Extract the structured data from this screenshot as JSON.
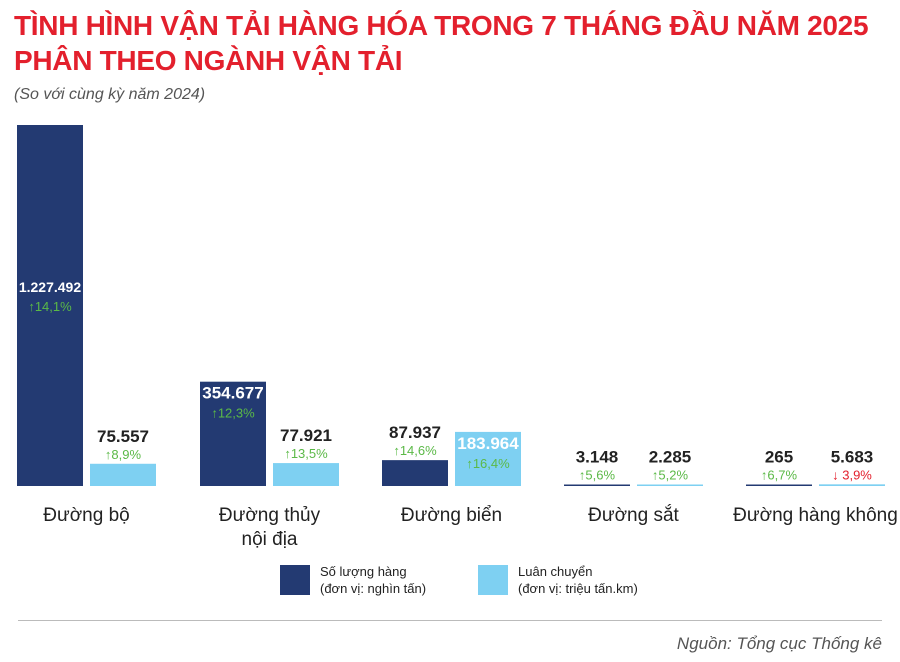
{
  "title": "TÌNH HÌNH VẬN TẢI HÀNG HÓA TRONG 7 THÁNG ĐẦU NĂM 2025 PHÂN THEO NGÀNH VẬN TẢI",
  "subtitle": "(So với cùng kỳ năm 2024)",
  "source": "Nguồn: Tổng cục Thống kê",
  "colors": {
    "volume": "#233a72",
    "rotation": "#7ed0f2",
    "up": "#5bb947",
    "down": "#e3202d",
    "title": "#e3202d"
  },
  "legend": [
    {
      "series": "volume",
      "line1": "Số lượng hàng",
      "line2": "(đơn vị: nghìn tấn)"
    },
    {
      "series": "rotation",
      "line1": "Luân chuyển",
      "line2": "(đơn vị: triệu tấn.km)"
    }
  ],
  "chart_data": {
    "type": "bar",
    "categories": [
      [
        "Đường bộ"
      ],
      [
        "Đường thủy",
        "nội địa"
      ],
      [
        "Đường biển"
      ],
      [
        "Đường sắt"
      ],
      [
        "Đường hàng không"
      ]
    ],
    "series": [
      {
        "name": "Số lượng hàng",
        "unit": "nghìn tấn",
        "values": [
          1227492,
          354677,
          87937,
          3148,
          265
        ],
        "labels": [
          "1.227.492",
          "354.677",
          "87.937",
          "3.148",
          "265"
        ],
        "changes": [
          {
            "text": "14,1%",
            "dir": "up"
          },
          {
            "text": "12,3%",
            "dir": "up"
          },
          {
            "text": "14,6%",
            "dir": "up"
          },
          {
            "text": "5,6%",
            "dir": "up"
          },
          {
            "text": "6,7%",
            "dir": "up"
          }
        ]
      },
      {
        "name": "Luân chuyển",
        "unit": "triệu tấn.km",
        "values": [
          75557,
          77921,
          183964,
          2285,
          5683
        ],
        "labels": [
          "75.557",
          "77.921",
          "183.964",
          "2.285",
          "5.683"
        ],
        "changes": [
          {
            "text": "8,9%",
            "dir": "up"
          },
          {
            "text": "13,5%",
            "dir": "up"
          },
          {
            "text": "16,4%",
            "dir": "up"
          },
          {
            "text": "5,2%",
            "dir": "up"
          },
          {
            "text": "3,9%",
            "dir": "down"
          }
        ]
      }
    ],
    "ylim": [
      0,
      1227492
    ],
    "legend_position": "bottom"
  }
}
